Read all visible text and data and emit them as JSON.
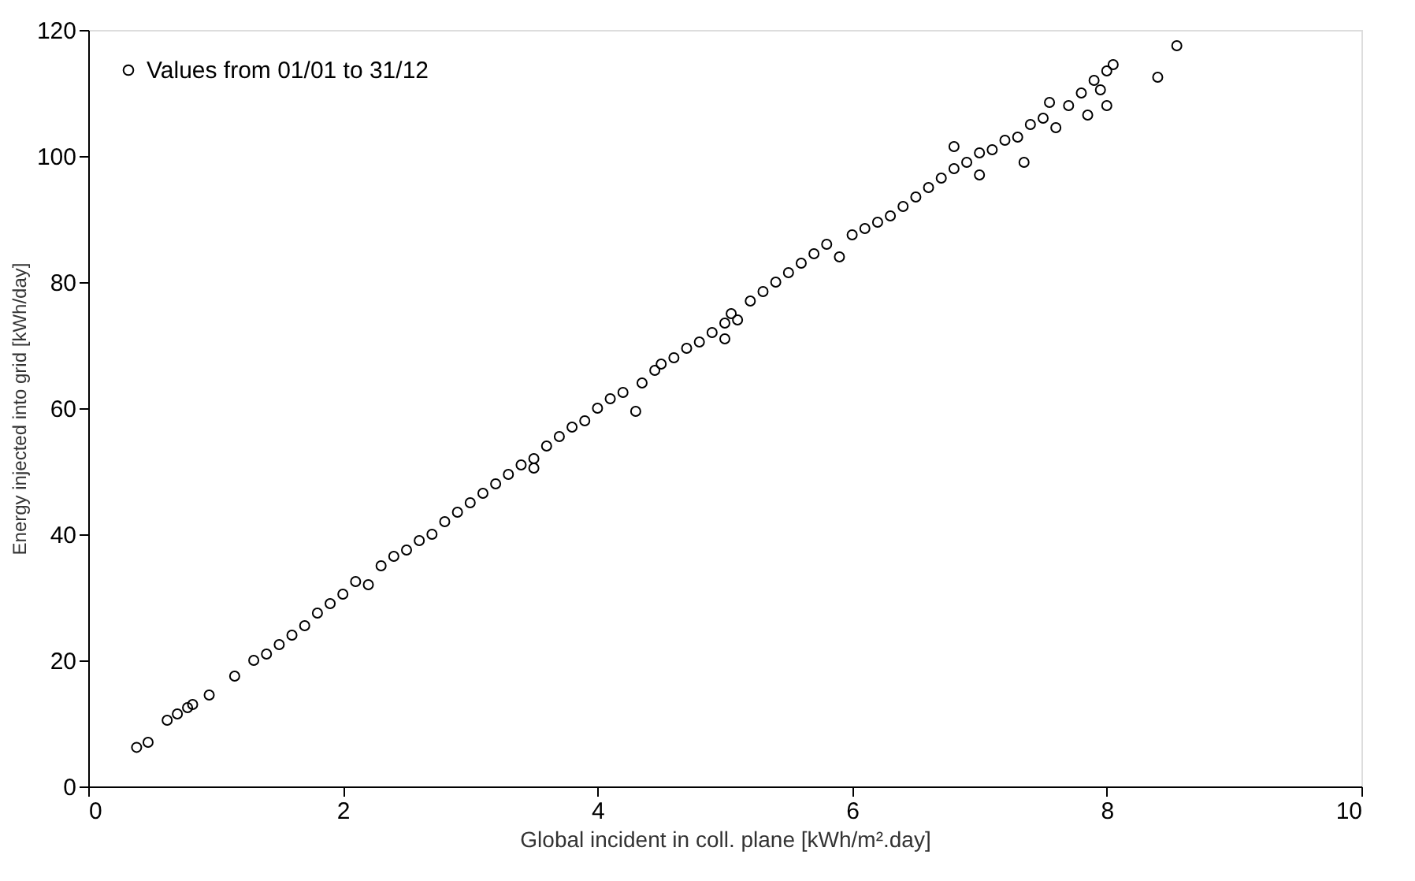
{
  "chart_data": {
    "type": "scatter",
    "xlabel": "Global incident in coll. plane [kWh/m².day]",
    "ylabel": "Energy injected into grid [kWh/day]",
    "xlim": [
      0,
      10
    ],
    "ylim": [
      0,
      120
    ],
    "xticks": [
      0,
      2,
      4,
      6,
      8,
      10
    ],
    "yticks": [
      0,
      20,
      40,
      60,
      80,
      100,
      120
    ],
    "grid": false,
    "legend": "top left",
    "marker": "circle",
    "series": [
      {
        "name": "Values from 01/01 to 31/12",
        "color": "#000000",
        "x": [
          0.38,
          0.47,
          0.62,
          0.7,
          0.78,
          0.82,
          0.95,
          1.15,
          1.3,
          1.4,
          1.5,
          1.6,
          1.7,
          1.8,
          1.9,
          2.0,
          2.1,
          2.2,
          2.3,
          2.4,
          2.5,
          2.6,
          2.7,
          2.8,
          2.9,
          3.0,
          3.1,
          3.2,
          3.3,
          3.4,
          3.5,
          3.5,
          3.6,
          3.7,
          3.8,
          3.9,
          4.0,
          4.1,
          4.2,
          4.3,
          4.35,
          4.45,
          4.5,
          4.6,
          4.7,
          4.8,
          4.9,
          5.0,
          5.0,
          5.05,
          5.1,
          5.2,
          5.3,
          5.4,
          5.5,
          5.6,
          5.7,
          5.8,
          5.9,
          6.0,
          6.1,
          6.2,
          6.3,
          6.4,
          6.5,
          6.6,
          6.7,
          6.8,
          6.8,
          6.9,
          7.0,
          7.0,
          7.1,
          7.2,
          7.3,
          7.35,
          7.4,
          7.5,
          7.55,
          7.6,
          7.7,
          7.8,
          7.85,
          7.9,
          7.95,
          8.0,
          8.0,
          8.05,
          8.4,
          8.55
        ],
        "values": [
          6.2,
          7.0,
          10.5,
          11.5,
          12.5,
          13.0,
          14.5,
          17.5,
          20.0,
          21.0,
          22.5,
          24.0,
          25.5,
          27.5,
          29.0,
          30.5,
          32.5,
          32.0,
          35.0,
          36.5,
          37.5,
          39.0,
          40.0,
          42.0,
          43.5,
          45.0,
          46.5,
          48.0,
          49.5,
          51.0,
          50.5,
          52.0,
          54.0,
          55.5,
          57.0,
          58.0,
          60.0,
          61.5,
          62.5,
          59.5,
          64.0,
          66.0,
          67.0,
          68.0,
          69.5,
          70.5,
          72.0,
          73.5,
          71.0,
          75.0,
          74.0,
          77.0,
          78.5,
          80.0,
          81.5,
          83.0,
          84.5,
          86.0,
          84.0,
          87.5,
          88.5,
          89.5,
          90.5,
          92.0,
          93.5,
          95.0,
          96.5,
          98.0,
          101.5,
          99.0,
          100.5,
          97.0,
          101.0,
          102.5,
          103.0,
          99.0,
          105.0,
          106.0,
          108.5,
          104.5,
          108.0,
          110.0,
          106.5,
          112.0,
          110.5,
          113.5,
          108.0,
          114.5,
          112.5,
          117.5
        ]
      }
    ]
  }
}
